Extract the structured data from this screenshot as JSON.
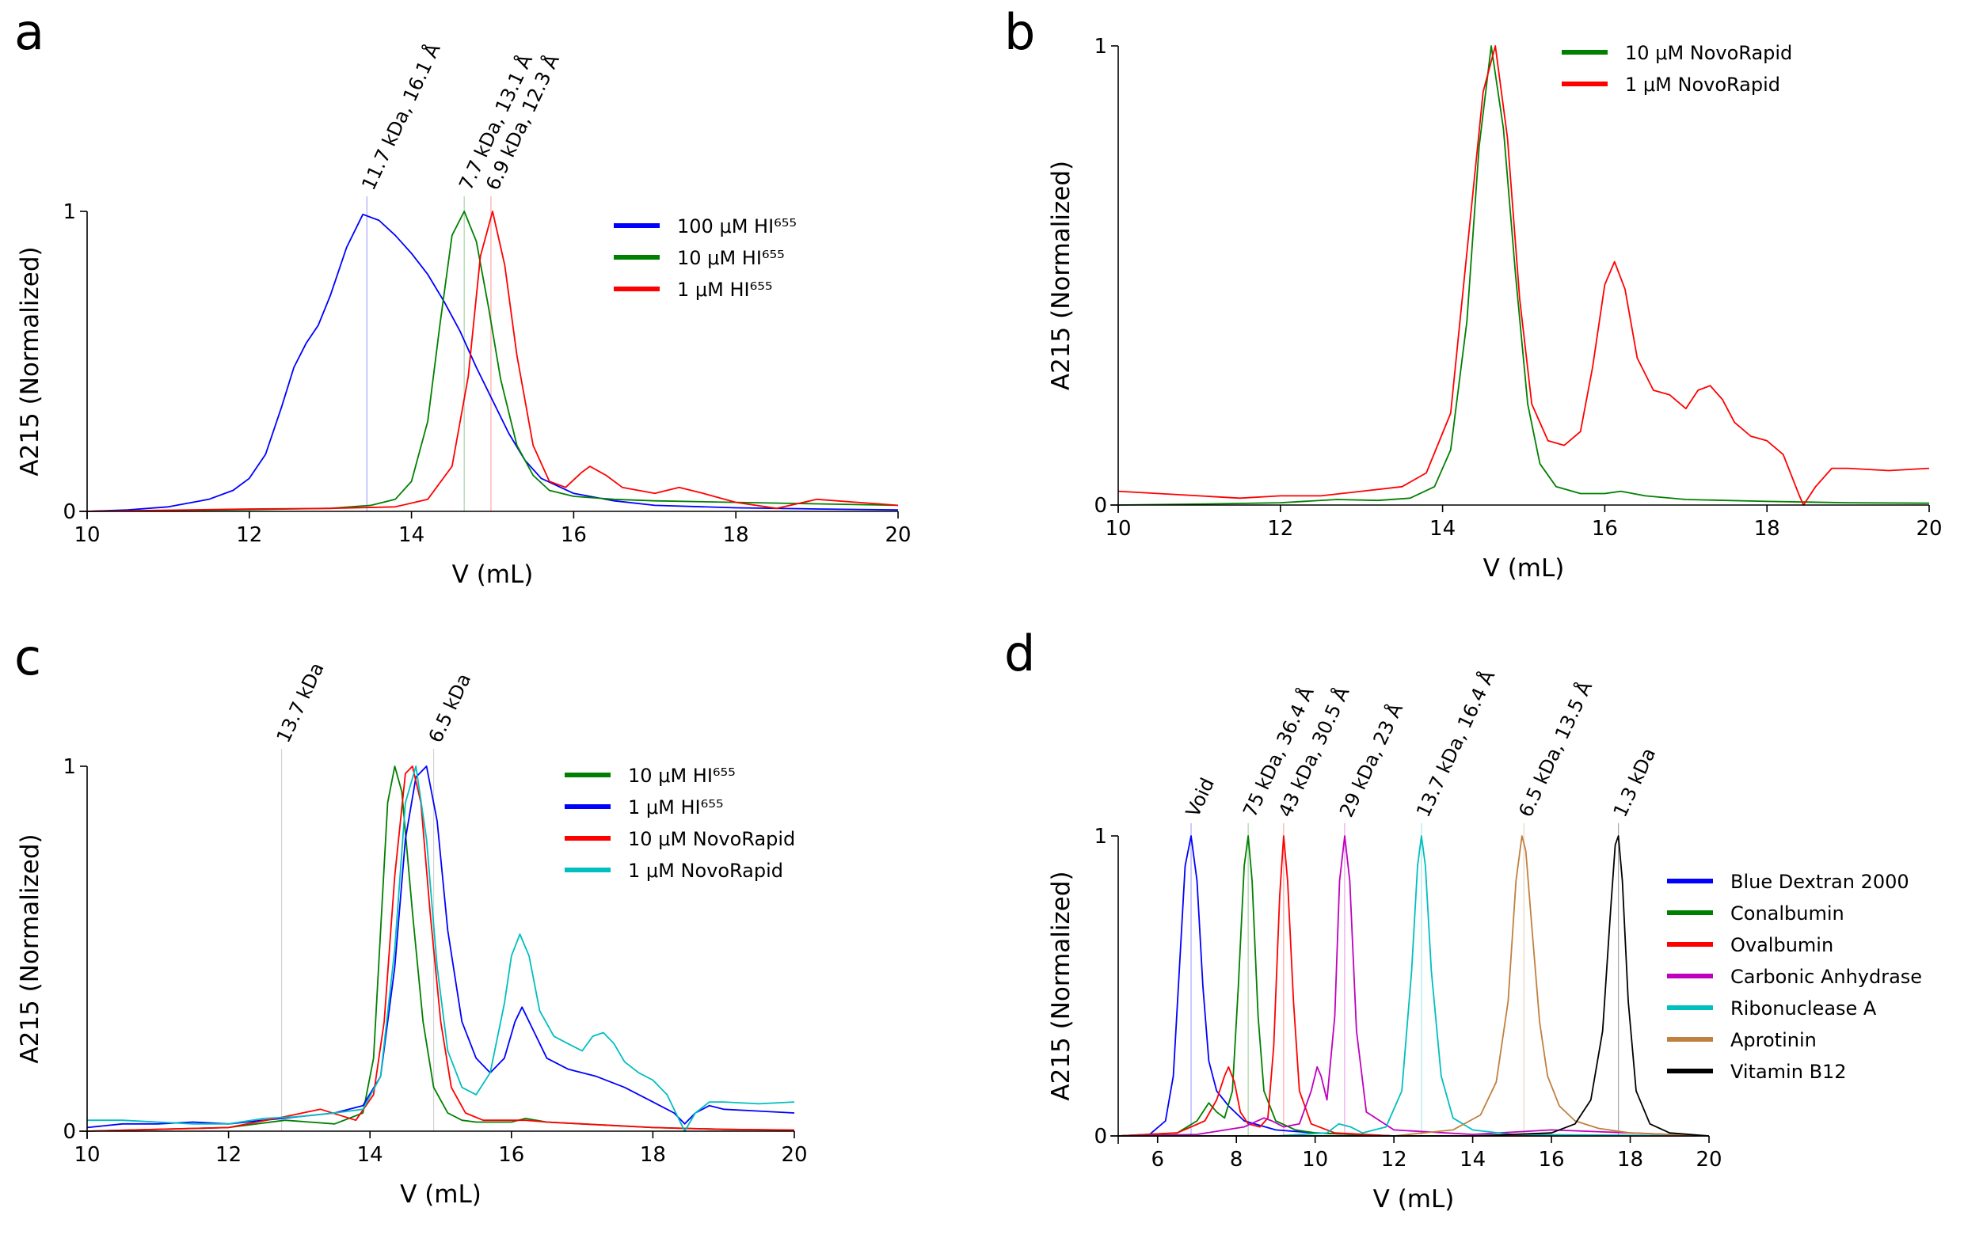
{
  "chart_data": [
    {
      "panel": "a",
      "type": "line",
      "xlabel": "V (mL)",
      "ylabel": "A215 (Normalized)",
      "xlim": [
        10,
        20
      ],
      "ylim": [
        0,
        1
      ],
      "xticks": [
        "10",
        "12",
        "14",
        "16",
        "18",
        "20"
      ],
      "yticks": [
        "0",
        "1"
      ],
      "legend_position": "top-right",
      "annotations": [
        {
          "text": "11.7 kDa, 16.1 Å",
          "x": 13.45,
          "color": "#0000ff"
        },
        {
          "text": "7.7 kDa, 13.1 Å",
          "x": 14.65,
          "color": "#008000"
        },
        {
          "text": "6.9 kDa, 12.3 Å",
          "x": 14.98,
          "color": "#ff0000"
        }
      ],
      "series": [
        {
          "name": "100 μM HI⁶⁵⁵",
          "color": "#0000ff",
          "x": [
            10,
            10.5,
            11,
            11.5,
            11.8,
            12,
            12.2,
            12.4,
            12.55,
            12.7,
            12.85,
            13,
            13.2,
            13.4,
            13.6,
            13.8,
            14,
            14.2,
            14.4,
            14.6,
            14.8,
            15,
            15.2,
            15.4,
            15.6,
            16,
            16.5,
            17,
            18,
            19,
            20
          ],
          "y": [
            0,
            0.005,
            0.015,
            0.04,
            0.07,
            0.11,
            0.19,
            0.35,
            0.48,
            0.56,
            0.62,
            0.72,
            0.88,
            0.99,
            0.97,
            0.92,
            0.86,
            0.79,
            0.7,
            0.6,
            0.48,
            0.37,
            0.26,
            0.17,
            0.11,
            0.06,
            0.035,
            0.02,
            0.012,
            0.008,
            0.005
          ]
        },
        {
          "name": "10 μM HI⁶⁵⁵",
          "color": "#008000",
          "x": [
            10,
            11,
            12,
            13,
            13.5,
            13.8,
            14,
            14.2,
            14.35,
            14.5,
            14.65,
            14.8,
            14.95,
            15.1,
            15.3,
            15.5,
            15.7,
            16,
            16.5,
            17,
            18,
            19,
            20
          ],
          "y": [
            0,
            0.003,
            0.006,
            0.01,
            0.02,
            0.04,
            0.1,
            0.3,
            0.62,
            0.92,
            1,
            0.9,
            0.68,
            0.44,
            0.22,
            0.12,
            0.07,
            0.05,
            0.04,
            0.035,
            0.03,
            0.025,
            0.02
          ]
        },
        {
          "name": "1 μM HI⁶⁵⁵",
          "color": "#ff0000",
          "x": [
            10,
            11,
            12,
            13,
            13.8,
            14.2,
            14.5,
            14.7,
            14.85,
            15,
            15.15,
            15.3,
            15.5,
            15.7,
            15.9,
            16.1,
            16.2,
            16.4,
            16.6,
            17,
            17.3,
            17.6,
            18,
            18.5,
            19,
            19.5,
            20
          ],
          "y": [
            0,
            0.004,
            0.008,
            0.01,
            0.015,
            0.04,
            0.15,
            0.45,
            0.85,
            1,
            0.82,
            0.52,
            0.22,
            0.1,
            0.08,
            0.13,
            0.15,
            0.12,
            0.08,
            0.06,
            0.08,
            0.06,
            0.03,
            0.01,
            0.04,
            0.03,
            0.02
          ]
        }
      ]
    },
    {
      "panel": "b",
      "type": "line",
      "xlabel": "V (mL)",
      "ylabel": "A215 (Normalized)",
      "xlim": [
        10,
        20
      ],
      "ylim": [
        0,
        1
      ],
      "xticks": [
        "10",
        "12",
        "14",
        "16",
        "18",
        "20"
      ],
      "yticks": [
        "0",
        "1"
      ],
      "legend_position": "top-right",
      "series": [
        {
          "name": "10 μM NovoRapid",
          "color": "#008000",
          "x": [
            10,
            11,
            12,
            12.7,
            13.2,
            13.6,
            13.9,
            14.1,
            14.3,
            14.45,
            14.6,
            14.75,
            14.9,
            15.05,
            15.2,
            15.4,
            15.7,
            16,
            16.2,
            16.5,
            17,
            18,
            19,
            20
          ],
          "y": [
            0,
            0.002,
            0.005,
            0.012,
            0.01,
            0.015,
            0.04,
            0.12,
            0.4,
            0.78,
            1,
            0.82,
            0.5,
            0.22,
            0.09,
            0.04,
            0.025,
            0.025,
            0.03,
            0.02,
            0.012,
            0.008,
            0.005,
            0.004
          ]
        },
        {
          "name": "1 μM NovoRapid",
          "color": "#ff0000",
          "x": [
            10,
            10.5,
            11,
            11.5,
            12,
            12.5,
            13,
            13.5,
            13.8,
            14.1,
            14.3,
            14.5,
            14.65,
            14.8,
            14.95,
            15.1,
            15.3,
            15.5,
            15.7,
            15.85,
            16,
            16.12,
            16.25,
            16.4,
            16.6,
            16.8,
            17,
            17.15,
            17.3,
            17.45,
            17.6,
            17.8,
            18,
            18.2,
            18.4,
            18.45,
            18.6,
            18.8,
            19,
            19.5,
            20
          ],
          "y": [
            0.03,
            0.025,
            0.02,
            0.015,
            0.02,
            0.02,
            0.03,
            0.04,
            0.07,
            0.2,
            0.55,
            0.9,
            1,
            0.8,
            0.45,
            0.22,
            0.14,
            0.13,
            0.16,
            0.3,
            0.48,
            0.53,
            0.47,
            0.32,
            0.25,
            0.24,
            0.21,
            0.25,
            0.26,
            0.23,
            0.18,
            0.15,
            0.14,
            0.11,
            0.02,
            0,
            0.04,
            0.08,
            0.08,
            0.075,
            0.08
          ]
        }
      ]
    },
    {
      "panel": "c",
      "type": "line",
      "xlabel": "V (mL)",
      "ylabel": "A215 (Normalized)",
      "xlim": [
        10,
        20
      ],
      "ylim": [
        0,
        1
      ],
      "xticks": [
        "10",
        "12",
        "14",
        "16",
        "18",
        "20"
      ],
      "yticks": [
        "0",
        "1"
      ],
      "legend_position": "top-right",
      "annotations": [
        {
          "text": "13.7 kDa",
          "x": 12.75,
          "color": "#808080"
        },
        {
          "text": "6.5 kDa",
          "x": 14.9,
          "color": "#808080"
        }
      ],
      "series": [
        {
          "name": "10 μM HI⁶⁵⁵",
          "color": "#008000",
          "x": [
            10,
            11,
            12,
            12.8,
            13.5,
            13.9,
            14.05,
            14.15,
            14.25,
            14.35,
            14.45,
            14.6,
            14.75,
            14.9,
            15.1,
            15.3,
            15.5,
            16,
            16.2,
            16.5,
            17,
            18,
            19,
            20
          ],
          "y": [
            0,
            0.005,
            0.01,
            0.03,
            0.02,
            0.05,
            0.2,
            0.55,
            0.9,
            1,
            0.93,
            0.6,
            0.3,
            0.12,
            0.05,
            0.03,
            0.025,
            0.025,
            0.035,
            0.025,
            0.02,
            0.01,
            0.005,
            0.003
          ]
        },
        {
          "name": "1 μM HI⁶⁵⁵",
          "color": "#0000ff",
          "x": [
            10,
            10.5,
            11,
            11.5,
            12,
            12.5,
            13,
            13.5,
            13.9,
            14.15,
            14.35,
            14.5,
            14.65,
            14.8,
            14.95,
            15.1,
            15.3,
            15.5,
            15.7,
            15.9,
            16.05,
            16.15,
            16.3,
            16.5,
            16.8,
            17.2,
            17.6,
            18,
            18.3,
            18.45,
            18.6,
            18.8,
            19,
            19.5,
            20
          ],
          "y": [
            0.01,
            0.02,
            0.02,
            0.025,
            0.02,
            0.03,
            0.04,
            0.05,
            0.07,
            0.15,
            0.45,
            0.8,
            0.97,
            1,
            0.85,
            0.55,
            0.3,
            0.2,
            0.16,
            0.2,
            0.3,
            0.34,
            0.28,
            0.2,
            0.17,
            0.15,
            0.12,
            0.08,
            0.05,
            0.02,
            0.05,
            0.07,
            0.06,
            0.055,
            0.05
          ]
        },
        {
          "name": "10 μM NovoRapid",
          "color": "#ff0000",
          "x": [
            10,
            11,
            12,
            12.8,
            13.3,
            13.8,
            14.05,
            14.2,
            14.35,
            14.5,
            14.6,
            14.72,
            14.85,
            15,
            15.15,
            15.35,
            15.6,
            16,
            16.2,
            16.5,
            17,
            18,
            19,
            20
          ],
          "y": [
            0,
            0.005,
            0.01,
            0.04,
            0.06,
            0.03,
            0.1,
            0.3,
            0.7,
            0.98,
            1,
            0.9,
            0.6,
            0.3,
            0.12,
            0.05,
            0.03,
            0.03,
            0.03,
            0.025,
            0.02,
            0.01,
            0.005,
            0.003
          ]
        },
        {
          "name": "1 μM NovoRapid",
          "color": "#00bfbf",
          "x": [
            10,
            10.5,
            11,
            11.5,
            12,
            12.5,
            13,
            13.5,
            13.9,
            14.15,
            14.35,
            14.5,
            14.65,
            14.8,
            14.95,
            15.1,
            15.3,
            15.5,
            15.7,
            15.9,
            16.0,
            16.12,
            16.25,
            16.4,
            16.6,
            16.8,
            17,
            17.15,
            17.3,
            17.45,
            17.6,
            17.8,
            18,
            18.2,
            18.4,
            18.45,
            18.6,
            18.8,
            19,
            19.5,
            20
          ],
          "y": [
            0.03,
            0.03,
            0.025,
            0.02,
            0.02,
            0.035,
            0.04,
            0.05,
            0.06,
            0.15,
            0.5,
            0.9,
            1,
            0.8,
            0.45,
            0.22,
            0.12,
            0.1,
            0.16,
            0.35,
            0.48,
            0.54,
            0.48,
            0.33,
            0.26,
            0.24,
            0.22,
            0.26,
            0.27,
            0.24,
            0.19,
            0.16,
            0.14,
            0.1,
            0.02,
            0,
            0.05,
            0.08,
            0.08,
            0.075,
            0.08
          ]
        }
      ]
    },
    {
      "panel": "d",
      "type": "line",
      "xlabel": "V (mL)",
      "ylabel": "A215 (Normalized)",
      "xlim": [
        5,
        20
      ],
      "ylim": [
        0,
        1
      ],
      "xticks": [
        "6",
        "8",
        "10",
        "12",
        "14",
        "16",
        "18",
        "20"
      ],
      "yticks": [
        "0",
        "1"
      ],
      "legend_position": "right",
      "annotations": [
        {
          "text": "Void",
          "x": 6.85,
          "color": "#0000ff"
        },
        {
          "text": "75 kDa, 36.4 Å",
          "x": 8.3,
          "color": "#008000"
        },
        {
          "text": "43 kDa, 30.5 Å",
          "x": 9.2,
          "color": "#ff0000"
        },
        {
          "text": "29 kDa, 23 Å",
          "x": 10.75,
          "color": "#bf00bf"
        },
        {
          "text": "13.7 kDa, 16.4 Å",
          "x": 12.7,
          "color": "#00bfbf"
        },
        {
          "text": "6.5 kDa, 13.5 Å",
          "x": 15.3,
          "color": "#c08040"
        },
        {
          "text": "1.3 kDa",
          "x": 17.7,
          "color": "#000000"
        }
      ],
      "series": [
        {
          "name": "Blue Dextran 2000",
          "color": "#0000ff",
          "x": [
            5,
            5.8,
            6.2,
            6.4,
            6.55,
            6.7,
            6.85,
            7.0,
            7.15,
            7.3,
            7.5,
            7.8,
            8.2,
            9,
            10,
            12,
            16,
            20
          ],
          "y": [
            0,
            0.005,
            0.05,
            0.2,
            0.55,
            0.9,
            1,
            0.85,
            0.5,
            0.25,
            0.15,
            0.1,
            0.05,
            0.02,
            0.01,
            0,
            0,
            0
          ]
        },
        {
          "name": "Conalbumin",
          "color": "#008000",
          "x": [
            5,
            6.5,
            7.0,
            7.3,
            7.5,
            7.7,
            7.9,
            8.05,
            8.2,
            8.3,
            8.4,
            8.55,
            8.7,
            9.0,
            9.5,
            10,
            12,
            20
          ],
          "y": [
            0,
            0.01,
            0.05,
            0.11,
            0.08,
            0.06,
            0.15,
            0.5,
            0.9,
            1,
            0.85,
            0.4,
            0.15,
            0.05,
            0.02,
            0.01,
            0,
            0
          ]
        },
        {
          "name": "Ovalbumin",
          "color": "#ff0000",
          "x": [
            5,
            6.5,
            7.2,
            7.5,
            7.7,
            7.8,
            7.95,
            8.1,
            8.3,
            8.6,
            8.8,
            8.95,
            9.1,
            9.2,
            9.3,
            9.45,
            9.6,
            9.9,
            10.5,
            12,
            20
          ],
          "y": [
            0,
            0.01,
            0.05,
            0.12,
            0.2,
            0.23,
            0.18,
            0.08,
            0.04,
            0.03,
            0.06,
            0.3,
            0.8,
            1,
            0.85,
            0.45,
            0.15,
            0.04,
            0.01,
            0,
            0
          ]
        },
        {
          "name": "Carbonic Anhydrase",
          "color": "#bf00bf",
          "x": [
            5,
            7,
            8.2,
            8.7,
            8.9,
            9.2,
            9.6,
            9.9,
            10.05,
            10.15,
            10.3,
            10.5,
            10.62,
            10.75,
            10.88,
            11.05,
            11.3,
            12,
            14,
            16,
            20
          ],
          "y": [
            0,
            0.005,
            0.03,
            0.06,
            0.05,
            0.03,
            0.04,
            0.15,
            0.23,
            0.2,
            0.12,
            0.4,
            0.85,
            1,
            0.85,
            0.35,
            0.08,
            0.02,
            0.005,
            0.02,
            0
          ]
        },
        {
          "name": "Ribonuclease A",
          "color": "#00bfbf",
          "x": [
            5,
            9,
            10.3,
            10.6,
            10.9,
            11.2,
            11.8,
            12.2,
            12.45,
            12.6,
            12.7,
            12.8,
            12.95,
            13.2,
            13.5,
            14,
            15,
            20
          ],
          "y": [
            0,
            0,
            0.01,
            0.04,
            0.03,
            0.01,
            0.03,
            0.15,
            0.55,
            0.9,
            1,
            0.9,
            0.55,
            0.2,
            0.06,
            0.02,
            0.005,
            0
          ]
        },
        {
          "name": "Aprotinin",
          "color": "#c08040",
          "x": [
            5,
            12,
            13.5,
            14.2,
            14.6,
            14.9,
            15.1,
            15.25,
            15.35,
            15.5,
            15.7,
            15.9,
            16.2,
            16.6,
            17.2,
            18,
            20
          ],
          "y": [
            0,
            0,
            0.02,
            0.07,
            0.18,
            0.45,
            0.85,
            1,
            0.95,
            0.7,
            0.38,
            0.2,
            0.1,
            0.05,
            0.025,
            0.01,
            0
          ]
        },
        {
          "name": "Vitamin B12",
          "color": "#000000",
          "x": [
            5,
            14,
            16,
            16.6,
            17.0,
            17.3,
            17.5,
            17.62,
            17.7,
            17.8,
            17.95,
            18.15,
            18.5,
            19,
            20
          ],
          "y": [
            0,
            0,
            0.01,
            0.04,
            0.12,
            0.35,
            0.75,
            0.97,
            1,
            0.85,
            0.45,
            0.15,
            0.04,
            0.01,
            0
          ]
        }
      ]
    }
  ]
}
